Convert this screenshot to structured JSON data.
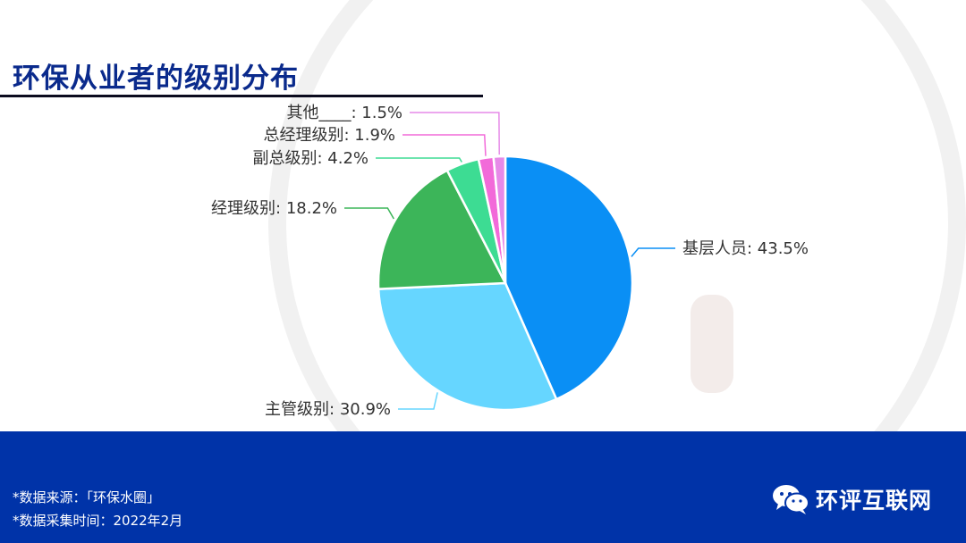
{
  "title": "环保从业者的级别分布",
  "footer": {
    "source": "*数据来源：「环保水圈」",
    "date": "*数据采集时间：2022年2月",
    "brand": "环评互联网"
  },
  "chart_data": {
    "type": "pie",
    "title": "环保从业者的级别分布",
    "slices": [
      {
        "name": "基层人员",
        "value": 43.5,
        "label": "基层人员: 43.5%",
        "color": "#0a8ff5"
      },
      {
        "name": "主管级别",
        "value": 30.9,
        "label": "主管级别: 30.9%",
        "color": "#66d6ff"
      },
      {
        "name": "经理级别",
        "value": 18.2,
        "label": "经理级别: 18.2%",
        "color": "#3cb559"
      },
      {
        "name": "副总级别",
        "value": 4.2,
        "label": "副总级别: 4.2%",
        "color": "#3ddc93"
      },
      {
        "name": "总经理级别",
        "value": 1.9,
        "label": "总经理级别: 1.9%",
        "color": "#f26ad9"
      },
      {
        "name": "其他____",
        "value": 1.5,
        "label": "其他____: 1.5%",
        "color": "#e68ae8"
      }
    ]
  }
}
